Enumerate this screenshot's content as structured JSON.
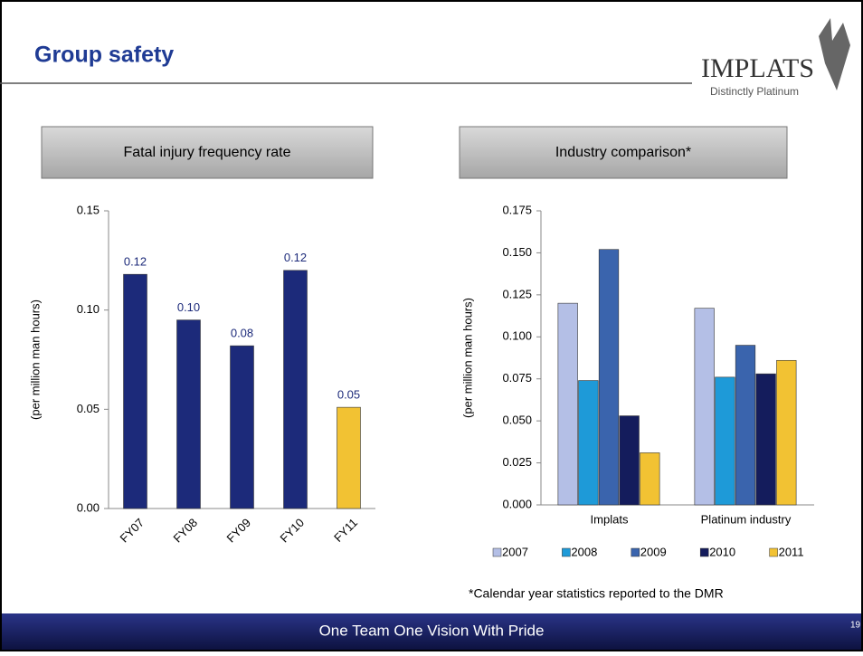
{
  "slide": {
    "title": "Group safety",
    "logo": "IMPLATS",
    "tagline": "Distinctly Platinum",
    "note": "*Calendar year statistics reported to the DMR",
    "footer": "One Team One Vision With Pride",
    "page": "19"
  },
  "chart_data": [
    {
      "type": "bar",
      "title": "Fatal injury frequency rate",
      "ylabel": "(per million man hours)",
      "categories": [
        "FY07",
        "FY08",
        "FY09",
        "FY10",
        "FY11"
      ],
      "values": [
        0.118,
        0.095,
        0.082,
        0.12,
        0.051
      ],
      "value_labels": [
        "0.12",
        "0.10",
        "0.08",
        "0.12",
        "0.05"
      ],
      "colors": [
        "#1c2a7a",
        "#1c2a7a",
        "#1c2a7a",
        "#1c2a7a",
        "#f2c233"
      ],
      "ylim": [
        0,
        0.15
      ],
      "yticks": [
        {
          "value": 0,
          "label": "0.00"
        },
        0.05,
        {
          "value": 0.1,
          "label": "0.10"
        },
        0.15
      ]
    },
    {
      "type": "bar",
      "title": "Industry comparison*",
      "ylabel": "(per million man hours)",
      "categories": [
        "Implats",
        "Platinum industry"
      ],
      "series": [
        {
          "name": "2007",
          "color": "#b4bfe6",
          "values": [
            0.12,
            0.117
          ]
        },
        {
          "name": "2008",
          "color": "#1e9ad8",
          "values": [
            0.074,
            0.076
          ]
        },
        {
          "name": "2009",
          "color": "#3a64ad",
          "values": [
            0.152,
            0.095
          ]
        },
        {
          "name": "2010",
          "color": "#141c5c",
          "values": [
            0.053,
            0.078
          ]
        },
        {
          "name": "2011",
          "color": "#f2c233",
          "values": [
            0.031,
            0.086
          ]
        }
      ],
      "ylim": [
        0,
        0.175
      ],
      "yticks": [
        {
          "value": 0,
          "label": "0.000"
        },
        0.025,
        {
          "value": 0.05,
          "label": "0.050"
        },
        0.075,
        {
          "value": 0.1,
          "label": "0.100"
        },
        0.125,
        {
          "value": 0.15,
          "label": "0.150"
        },
        0.175
      ]
    }
  ]
}
